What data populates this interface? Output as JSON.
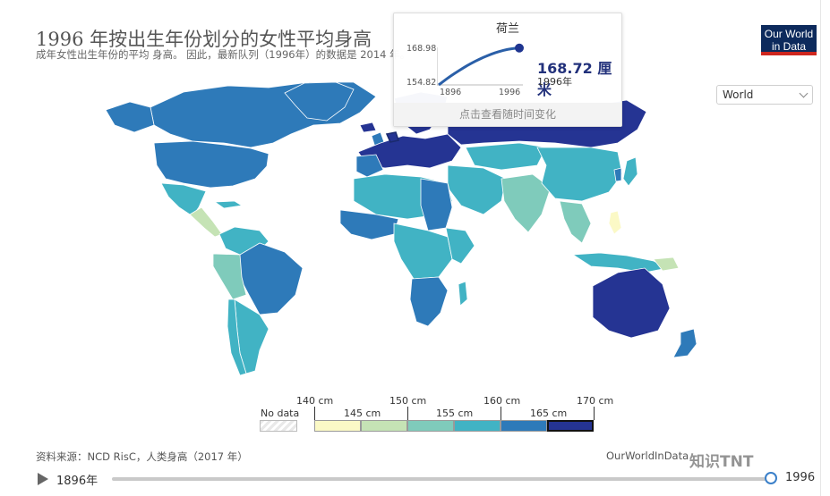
{
  "header": {
    "title": "1996 年按出生年份划分的女性平均身高",
    "subtitle": "成年女性出生年份的平均 身高。 因此，最新队列（1996年）的数据是 2014 年。"
  },
  "logo": {
    "line1": "Our World",
    "line2": "in Data"
  },
  "region_select": {
    "value": "World"
  },
  "tooltip": {
    "country": "荷兰",
    "y_max": "168.98",
    "y_min": "154.82",
    "x_start": "1896",
    "x_end": "1996",
    "value": "168.72 厘米",
    "year": "1996年",
    "hint": "点击查看随时间变化",
    "line_color": "#2a5fa8",
    "dot_color": "#1f3590"
  },
  "legend": {
    "no_data_label": "No data",
    "upper_ticks": [
      "140 cm",
      "150 cm",
      "160 cm",
      "170 cm"
    ],
    "lower_ticks": [
      "145 cm",
      "155 cm",
      "165 cm"
    ],
    "bins": [
      {
        "range": "140–145 cm",
        "color": "#fbf9c6"
      },
      {
        "range": "145–150 cm",
        "color": "#c5e3b5"
      },
      {
        "range": "150–155 cm",
        "color": "#7fcbbb"
      },
      {
        "range": "155–160 cm",
        "color": "#41b3c4"
      },
      {
        "range": "160–165 cm",
        "color": "#2e7ab9"
      },
      {
        "range": "165–170 cm",
        "color": "#253493"
      }
    ]
  },
  "footer": {
    "source": "资料来源：NCD RisC，人类身高（2017 年）",
    "credit": "OurWorldInData",
    "watermark": "知识TNT"
  },
  "timeline": {
    "start_label": "1896年",
    "end_label": "1996",
    "current_year": 1996,
    "start_year": 1896
  },
  "colors": {
    "ocean": "#ffffff",
    "country_border": "#ffffff",
    "no_data": "#e8e8e8"
  }
}
